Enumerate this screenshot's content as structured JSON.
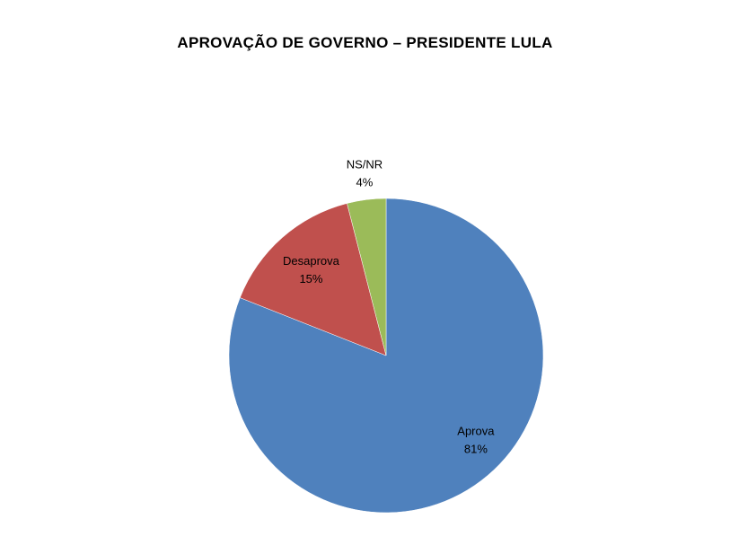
{
  "chart_data": {
    "type": "pie",
    "title": "APROVAÇÃO DE GOVERNO – PRESIDENTE LULA",
    "legend": "none",
    "slices": [
      {
        "label": "Aprova",
        "value": 81,
        "value_label": "81%",
        "color": "#4F81BD"
      },
      {
        "label": "Desaprova",
        "value": 15,
        "value_label": "15%",
        "color": "#C0504D"
      },
      {
        "label": "NS/NR",
        "value": 4,
        "value_label": "4%",
        "color": "#9BBB59"
      }
    ]
  }
}
